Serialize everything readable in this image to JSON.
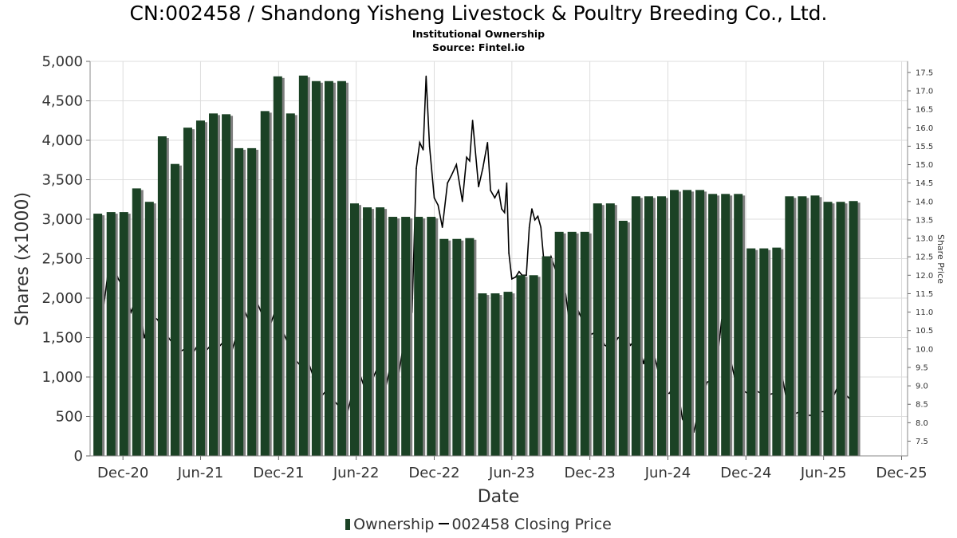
{
  "title": "CN:002458 / Shandong Yisheng Livestock & Poultry Breeding Co., Ltd.",
  "subtitle": "Institutional Ownership",
  "source": "Source: Fintel.io",
  "legend": {
    "ownership": "Ownership",
    "price": "002458 Closing Price"
  },
  "colors": {
    "bar": "#1b4225",
    "bar_shadow": "#808080",
    "line": "#000000",
    "grid": "#dddddd"
  },
  "chart_data": {
    "type": "bar",
    "title": "CN:002458 / Shandong Yisheng Livestock & Poultry Breeding Co., Ltd.",
    "xlabel": "Date",
    "ylabel": "Shares (x1000)",
    "y2label": "Share Price",
    "ylim": [
      0,
      5000
    ],
    "y2lim": [
      7.1,
      17.8
    ],
    "xlim": [
      "2020-09-15",
      "2025-12-15"
    ],
    "grid": true,
    "legend_position": "bottom",
    "yticks": [
      "0",
      "500",
      "1,000",
      "1,500",
      "2,000",
      "2,500",
      "3,000",
      "3,500",
      "4,000",
      "4,500",
      "5,000"
    ],
    "y2ticks": [
      "7.5",
      "8.0",
      "8.5",
      "9.0",
      "9.5",
      "10.0",
      "10.5",
      "11.0",
      "11.5",
      "12.0",
      "12.5",
      "13.0",
      "13.5",
      "14.0",
      "14.5",
      "15.0",
      "15.5",
      "16.0",
      "16.5",
      "17.0",
      "17.5"
    ],
    "xticks": [
      {
        "label": "Dec-20",
        "date": "2020-12-01"
      },
      {
        "label": "Jun-21",
        "date": "2021-06-01"
      },
      {
        "label": "Dec-21",
        "date": "2021-12-01"
      },
      {
        "label": "Jun-22",
        "date": "2022-06-01"
      },
      {
        "label": "Dec-22",
        "date": "2022-12-01"
      },
      {
        "label": "Jun-23",
        "date": "2023-06-01"
      },
      {
        "label": "Dec-23",
        "date": "2023-12-01"
      },
      {
        "label": "Jun-24",
        "date": "2024-06-01"
      },
      {
        "label": "Dec-24",
        "date": "2024-12-01"
      },
      {
        "label": "Jun-25",
        "date": "2025-06-01"
      },
      {
        "label": "Dec-25",
        "date": "2025-12-01"
      }
    ],
    "series": [
      {
        "name": "Ownership",
        "type": "bar",
        "points": [
          {
            "date": "2020-10-03",
            "value": 3070
          },
          {
            "date": "2020-11-03",
            "value": 3090
          },
          {
            "date": "2020-12-03",
            "value": 3090
          },
          {
            "date": "2021-01-02",
            "value": 3390
          },
          {
            "date": "2021-02-01",
            "value": 3220
          },
          {
            "date": "2021-03-03",
            "value": 4050
          },
          {
            "date": "2021-04-02",
            "value": 3700
          },
          {
            "date": "2021-05-02",
            "value": 4160
          },
          {
            "date": "2021-06-01",
            "value": 4250
          },
          {
            "date": "2021-07-01",
            "value": 4340
          },
          {
            "date": "2021-07-31",
            "value": 4330
          },
          {
            "date": "2021-08-30",
            "value": 3900
          },
          {
            "date": "2021-09-29",
            "value": 3900
          },
          {
            "date": "2021-10-30",
            "value": 4370
          },
          {
            "date": "2021-11-29",
            "value": 4810
          },
          {
            "date": "2021-12-29",
            "value": 4340
          },
          {
            "date": "2022-01-28",
            "value": 4820
          },
          {
            "date": "2022-02-27",
            "value": 4750
          },
          {
            "date": "2022-03-29",
            "value": 4750
          },
          {
            "date": "2022-04-28",
            "value": 4750
          },
          {
            "date": "2022-05-28",
            "value": 3200
          },
          {
            "date": "2022-06-27",
            "value": 3150
          },
          {
            "date": "2022-07-27",
            "value": 3150
          },
          {
            "date": "2022-08-26",
            "value": 3030
          },
          {
            "date": "2022-09-25",
            "value": 3030
          },
          {
            "date": "2022-10-25",
            "value": 3030
          },
          {
            "date": "2022-11-24",
            "value": 3030
          },
          {
            "date": "2022-12-24",
            "value": 2750
          },
          {
            "date": "2023-01-23",
            "value": 2750
          },
          {
            "date": "2023-02-22",
            "value": 2760
          },
          {
            "date": "2023-03-24",
            "value": 2060
          },
          {
            "date": "2023-04-23",
            "value": 2060
          },
          {
            "date": "2023-05-23",
            "value": 2080
          },
          {
            "date": "2023-06-22",
            "value": 2290
          },
          {
            "date": "2023-07-22",
            "value": 2290
          },
          {
            "date": "2023-08-21",
            "value": 2530
          },
          {
            "date": "2023-09-20",
            "value": 2840
          },
          {
            "date": "2023-10-20",
            "value": 2840
          },
          {
            "date": "2023-11-19",
            "value": 2840
          },
          {
            "date": "2023-12-19",
            "value": 3200
          },
          {
            "date": "2024-01-18",
            "value": 3200
          },
          {
            "date": "2024-02-17",
            "value": 2980
          },
          {
            "date": "2024-03-18",
            "value": 3290
          },
          {
            "date": "2024-04-17",
            "value": 3290
          },
          {
            "date": "2024-05-17",
            "value": 3290
          },
          {
            "date": "2024-06-16",
            "value": 3370
          },
          {
            "date": "2024-07-16",
            "value": 3370
          },
          {
            "date": "2024-08-15",
            "value": 3370
          },
          {
            "date": "2024-09-14",
            "value": 3320
          },
          {
            "date": "2024-10-14",
            "value": 3320
          },
          {
            "date": "2024-11-13",
            "value": 3320
          },
          {
            "date": "2024-12-13",
            "value": 2630
          },
          {
            "date": "2025-01-12",
            "value": 2630
          },
          {
            "date": "2025-02-11",
            "value": 2640
          },
          {
            "date": "2025-03-13",
            "value": 3290
          },
          {
            "date": "2025-04-12",
            "value": 3290
          },
          {
            "date": "2025-05-12",
            "value": 3300
          },
          {
            "date": "2025-06-11",
            "value": 3220
          },
          {
            "date": "2025-07-11",
            "value": 3220
          },
          {
            "date": "2025-08-10",
            "value": 3230
          }
        ]
      },
      {
        "name": "002458 Closing Price",
        "type": "line",
        "points": [
          {
            "date": "2020-10-01",
            "value": 11.4
          },
          {
            "date": "2020-10-15",
            "value": 11.0
          },
          {
            "date": "2020-11-01",
            "value": 12.5
          },
          {
            "date": "2020-11-20",
            "value": 11.9
          },
          {
            "date": "2020-12-05",
            "value": 11.6
          },
          {
            "date": "2020-12-20",
            "value": 11.0
          },
          {
            "date": "2021-01-05",
            "value": 11.5
          },
          {
            "date": "2021-01-20",
            "value": 10.3
          },
          {
            "date": "2021-02-05",
            "value": 10.9
          },
          {
            "date": "2021-02-20",
            "value": 10.8
          },
          {
            "date": "2021-03-05",
            "value": 10.5
          },
          {
            "date": "2021-03-25",
            "value": 10.2
          },
          {
            "date": "2021-04-10",
            "value": 9.9
          },
          {
            "date": "2021-04-25",
            "value": 10.0
          },
          {
            "date": "2021-05-10",
            "value": 9.8
          },
          {
            "date": "2021-05-25",
            "value": 10.1
          },
          {
            "date": "2021-06-10",
            "value": 9.9
          },
          {
            "date": "2021-06-25",
            "value": 10.1
          },
          {
            "date": "2021-07-10",
            "value": 10.0
          },
          {
            "date": "2021-07-25",
            "value": 10.2
          },
          {
            "date": "2021-08-10",
            "value": 9.8
          },
          {
            "date": "2021-08-25",
            "value": 10.4
          },
          {
            "date": "2021-09-10",
            "value": 11.1
          },
          {
            "date": "2021-09-25",
            "value": 10.7
          },
          {
            "date": "2021-10-10",
            "value": 11.3
          },
          {
            "date": "2021-10-25",
            "value": 10.9
          },
          {
            "date": "2021-11-10",
            "value": 10.6
          },
          {
            "date": "2021-11-25",
            "value": 11.1
          },
          {
            "date": "2021-12-10",
            "value": 10.5
          },
          {
            "date": "2021-12-25",
            "value": 10.1
          },
          {
            "date": "2022-01-10",
            "value": 9.7
          },
          {
            "date": "2022-01-25",
            "value": 9.5
          },
          {
            "date": "2022-02-10",
            "value": 9.6
          },
          {
            "date": "2022-02-25",
            "value": 9.1
          },
          {
            "date": "2022-03-10",
            "value": 8.7
          },
          {
            "date": "2022-03-25",
            "value": 8.9
          },
          {
            "date": "2022-04-10",
            "value": 8.6
          },
          {
            "date": "2022-04-25",
            "value": 8.4
          },
          {
            "date": "2022-05-10",
            "value": 8.2
          },
          {
            "date": "2022-05-25",
            "value": 8.9
          },
          {
            "date": "2022-06-10",
            "value": 9.3
          },
          {
            "date": "2022-06-25",
            "value": 8.8
          },
          {
            "date": "2022-07-10",
            "value": 9.2
          },
          {
            "date": "2022-07-25",
            "value": 9.6
          },
          {
            "date": "2022-08-10",
            "value": 9.0
          },
          {
            "date": "2022-08-25",
            "value": 9.8
          },
          {
            "date": "2022-09-10",
            "value": 9.4
          },
          {
            "date": "2022-09-25",
            "value": 10.5
          },
          {
            "date": "2022-10-10",
            "value": 11.0
          },
          {
            "date": "2022-10-20",
            "value": 14.9
          },
          {
            "date": "2022-10-28",
            "value": 15.6
          },
          {
            "date": "2022-11-05",
            "value": 15.4
          },
          {
            "date": "2022-11-12",
            "value": 17.4
          },
          {
            "date": "2022-11-20",
            "value": 15.5
          },
          {
            "date": "2022-12-01",
            "value": 14.1
          },
          {
            "date": "2022-12-10",
            "value": 13.9
          },
          {
            "date": "2022-12-20",
            "value": 13.3
          },
          {
            "date": "2023-01-01",
            "value": 14.5
          },
          {
            "date": "2023-01-10",
            "value": 14.7
          },
          {
            "date": "2023-01-22",
            "value": 15.0
          },
          {
            "date": "2023-02-05",
            "value": 14.0
          },
          {
            "date": "2023-02-15",
            "value": 15.2
          },
          {
            "date": "2023-02-22",
            "value": 15.1
          },
          {
            "date": "2023-03-01",
            "value": 16.2
          },
          {
            "date": "2023-03-15",
            "value": 14.4
          },
          {
            "date": "2023-03-25",
            "value": 14.9
          },
          {
            "date": "2023-04-05",
            "value": 15.6
          },
          {
            "date": "2023-04-12",
            "value": 14.3
          },
          {
            "date": "2023-04-22",
            "value": 14.1
          },
          {
            "date": "2023-05-01",
            "value": 14.3
          },
          {
            "date": "2023-05-08",
            "value": 13.8
          },
          {
            "date": "2023-05-15",
            "value": 13.7
          },
          {
            "date": "2023-05-20",
            "value": 14.5
          },
          {
            "date": "2023-05-25",
            "value": 12.6
          },
          {
            "date": "2023-06-01",
            "value": 11.9
          },
          {
            "date": "2023-06-10",
            "value": 11.95
          },
          {
            "date": "2023-06-18",
            "value": 12.1
          },
          {
            "date": "2023-06-25",
            "value": 12.0
          },
          {
            "date": "2023-07-05",
            "value": 12.0
          },
          {
            "date": "2023-07-12",
            "value": 13.3
          },
          {
            "date": "2023-07-18",
            "value": 13.8
          },
          {
            "date": "2023-07-25",
            "value": 13.5
          },
          {
            "date": "2023-08-01",
            "value": 13.6
          },
          {
            "date": "2023-08-08",
            "value": 13.3
          },
          {
            "date": "2023-08-15",
            "value": 12.4
          },
          {
            "date": "2023-08-22",
            "value": 12.0
          },
          {
            "date": "2023-09-01",
            "value": 12.5
          },
          {
            "date": "2023-09-10",
            "value": 12.2
          },
          {
            "date": "2023-09-25",
            "value": 11.7
          },
          {
            "date": "2023-10-05",
            "value": 11.5
          },
          {
            "date": "2023-10-20",
            "value": 10.2
          },
          {
            "date": "2023-11-05",
            "value": 11.0
          },
          {
            "date": "2023-11-20",
            "value": 10.6
          },
          {
            "date": "2023-12-05",
            "value": 10.4
          },
          {
            "date": "2023-12-20",
            "value": 10.5
          },
          {
            "date": "2024-01-05",
            "value": 10.1
          },
          {
            "date": "2024-01-20",
            "value": 10.0
          },
          {
            "date": "2024-02-05",
            "value": 10.3
          },
          {
            "date": "2024-02-20",
            "value": 10.4
          },
          {
            "date": "2024-03-05",
            "value": 10.1
          },
          {
            "date": "2024-03-20",
            "value": 10.3
          },
          {
            "date": "2024-04-05",
            "value": 9.6
          },
          {
            "date": "2024-04-20",
            "value": 10.3
          },
          {
            "date": "2024-05-05",
            "value": 9.6
          },
          {
            "date": "2024-05-20",
            "value": 8.8
          },
          {
            "date": "2024-06-05",
            "value": 8.8
          },
          {
            "date": "2024-06-20",
            "value": 9.2
          },
          {
            "date": "2024-07-05",
            "value": 8.1
          },
          {
            "date": "2024-07-20",
            "value": 7.8
          },
          {
            "date": "2024-08-01",
            "value": 7.75
          },
          {
            "date": "2024-08-15",
            "value": 8.5
          },
          {
            "date": "2024-09-01",
            "value": 9.1
          },
          {
            "date": "2024-09-20",
            "value": 9.2
          },
          {
            "date": "2024-10-05",
            "value": 10.8
          },
          {
            "date": "2024-10-20",
            "value": 10.0
          },
          {
            "date": "2024-11-05",
            "value": 9.2
          },
          {
            "date": "2024-11-20",
            "value": 8.9
          },
          {
            "date": "2024-12-05",
            "value": 8.8
          },
          {
            "date": "2024-12-20",
            "value": 8.9
          },
          {
            "date": "2025-01-05",
            "value": 8.8
          },
          {
            "date": "2025-01-20",
            "value": 8.75
          },
          {
            "date": "2025-02-05",
            "value": 8.8
          },
          {
            "date": "2025-02-20",
            "value": 9.5
          },
          {
            "date": "2025-03-05",
            "value": 8.7
          },
          {
            "date": "2025-03-20",
            "value": 8.2
          },
          {
            "date": "2025-04-05",
            "value": 8.3
          },
          {
            "date": "2025-04-20",
            "value": 8.2
          },
          {
            "date": "2025-05-05",
            "value": 8.2
          },
          {
            "date": "2025-05-20",
            "value": 8.3
          },
          {
            "date": "2025-06-05",
            "value": 8.3
          },
          {
            "date": "2025-06-20",
            "value": 8.6
          },
          {
            "date": "2025-07-05",
            "value": 9.0
          },
          {
            "date": "2025-07-20",
            "value": 8.8
          },
          {
            "date": "2025-08-05",
            "value": 8.6
          },
          {
            "date": "2025-08-15",
            "value": 8.5
          }
        ]
      }
    ]
  }
}
